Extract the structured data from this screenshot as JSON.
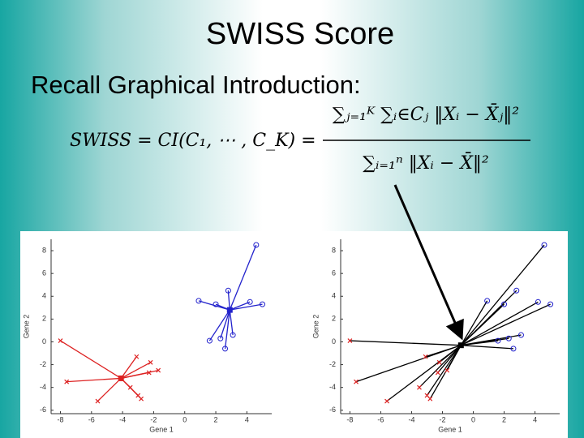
{
  "slide": {
    "title": "SWISS Score",
    "heading": "Recall Graphical Introduction:",
    "formula": {
      "lhs": "SWISS = CI(C₁, ⋯ , C_K) =",
      "numerator": "∑ⱼ₌₁ᴷ ∑ᵢ∈Cⱼ ‖Xᵢ − X̄ⱼ‖²",
      "denominator": "∑ᵢ₌₁ⁿ ‖Xᵢ − X̄‖²"
    }
  },
  "chart_data": [
    {
      "type": "scatter",
      "xlabel": "Gene 1",
      "ylabel": "Gene 2",
      "xlim": [
        -8.6,
        5.6
      ],
      "ylim": [
        -6.3,
        9
      ],
      "xticks": [
        -8,
        -6,
        -4,
        -2,
        0,
        2,
        4
      ],
      "yticks": [
        -6,
        -4,
        -2,
        0,
        2,
        4,
        6,
        8
      ],
      "series": [
        {
          "color": "#2222cc",
          "marker": "o",
          "line_color": "#2222cc",
          "x": [
            4.6,
            0.9,
            2.0,
            2.8,
            4.2,
            5.0,
            3.1,
            2.3,
            1.6,
            2.6
          ],
          "y": [
            8.5,
            3.6,
            3.3,
            4.5,
            3.5,
            3.3,
            0.6,
            0.3,
            0.1,
            -0.6
          ],
          "centroid": {
            "x": 2.9,
            "y": 2.8
          }
        },
        {
          "color": "#dd2222",
          "marker": "x",
          "line_color": "#dd2222",
          "x": [
            -8.0,
            -7.6,
            -5.6,
            -3.1,
            -2.2,
            -1.7,
            -2.3,
            -3.5,
            -3.0,
            -2.8
          ],
          "y": [
            0.1,
            -3.5,
            -5.2,
            -1.3,
            -1.8,
            -2.5,
            -2.7,
            -4.0,
            -4.7,
            -5.0
          ],
          "centroid": {
            "x": -4.1,
            "y": -3.2
          }
        }
      ]
    },
    {
      "type": "scatter",
      "xlabel": "Gene 1",
      "ylabel": "Gene 2",
      "xlim": [
        -8.6,
        5.6
      ],
      "ylim": [
        -6.3,
        9
      ],
      "xticks": [
        -8,
        -6,
        -4,
        -2,
        0,
        2,
        4
      ],
      "yticks": [
        -6,
        -4,
        -2,
        0,
        2,
        4,
        6,
        8
      ],
      "centroid": {
        "x": -0.8,
        "y": -0.3
      },
      "series": [
        {
          "color": "#2222cc",
          "marker": "o",
          "line_color": "#000000",
          "x": [
            4.6,
            0.9,
            2.0,
            2.8,
            4.2,
            5.0,
            3.1,
            2.3,
            1.6,
            2.6
          ],
          "y": [
            8.5,
            3.6,
            3.3,
            4.5,
            3.5,
            3.3,
            0.6,
            0.3,
            0.1,
            -0.6
          ]
        },
        {
          "color": "#dd2222",
          "marker": "x",
          "line_color": "#000000",
          "x": [
            -8.0,
            -7.6,
            -5.6,
            -3.1,
            -2.2,
            -1.7,
            -2.3,
            -3.5,
            -3.0,
            -2.8
          ],
          "y": [
            0.1,
            -3.5,
            -5.2,
            -1.3,
            -1.8,
            -2.5,
            -2.7,
            -4.0,
            -4.7,
            -5.0
          ]
        }
      ]
    }
  ]
}
